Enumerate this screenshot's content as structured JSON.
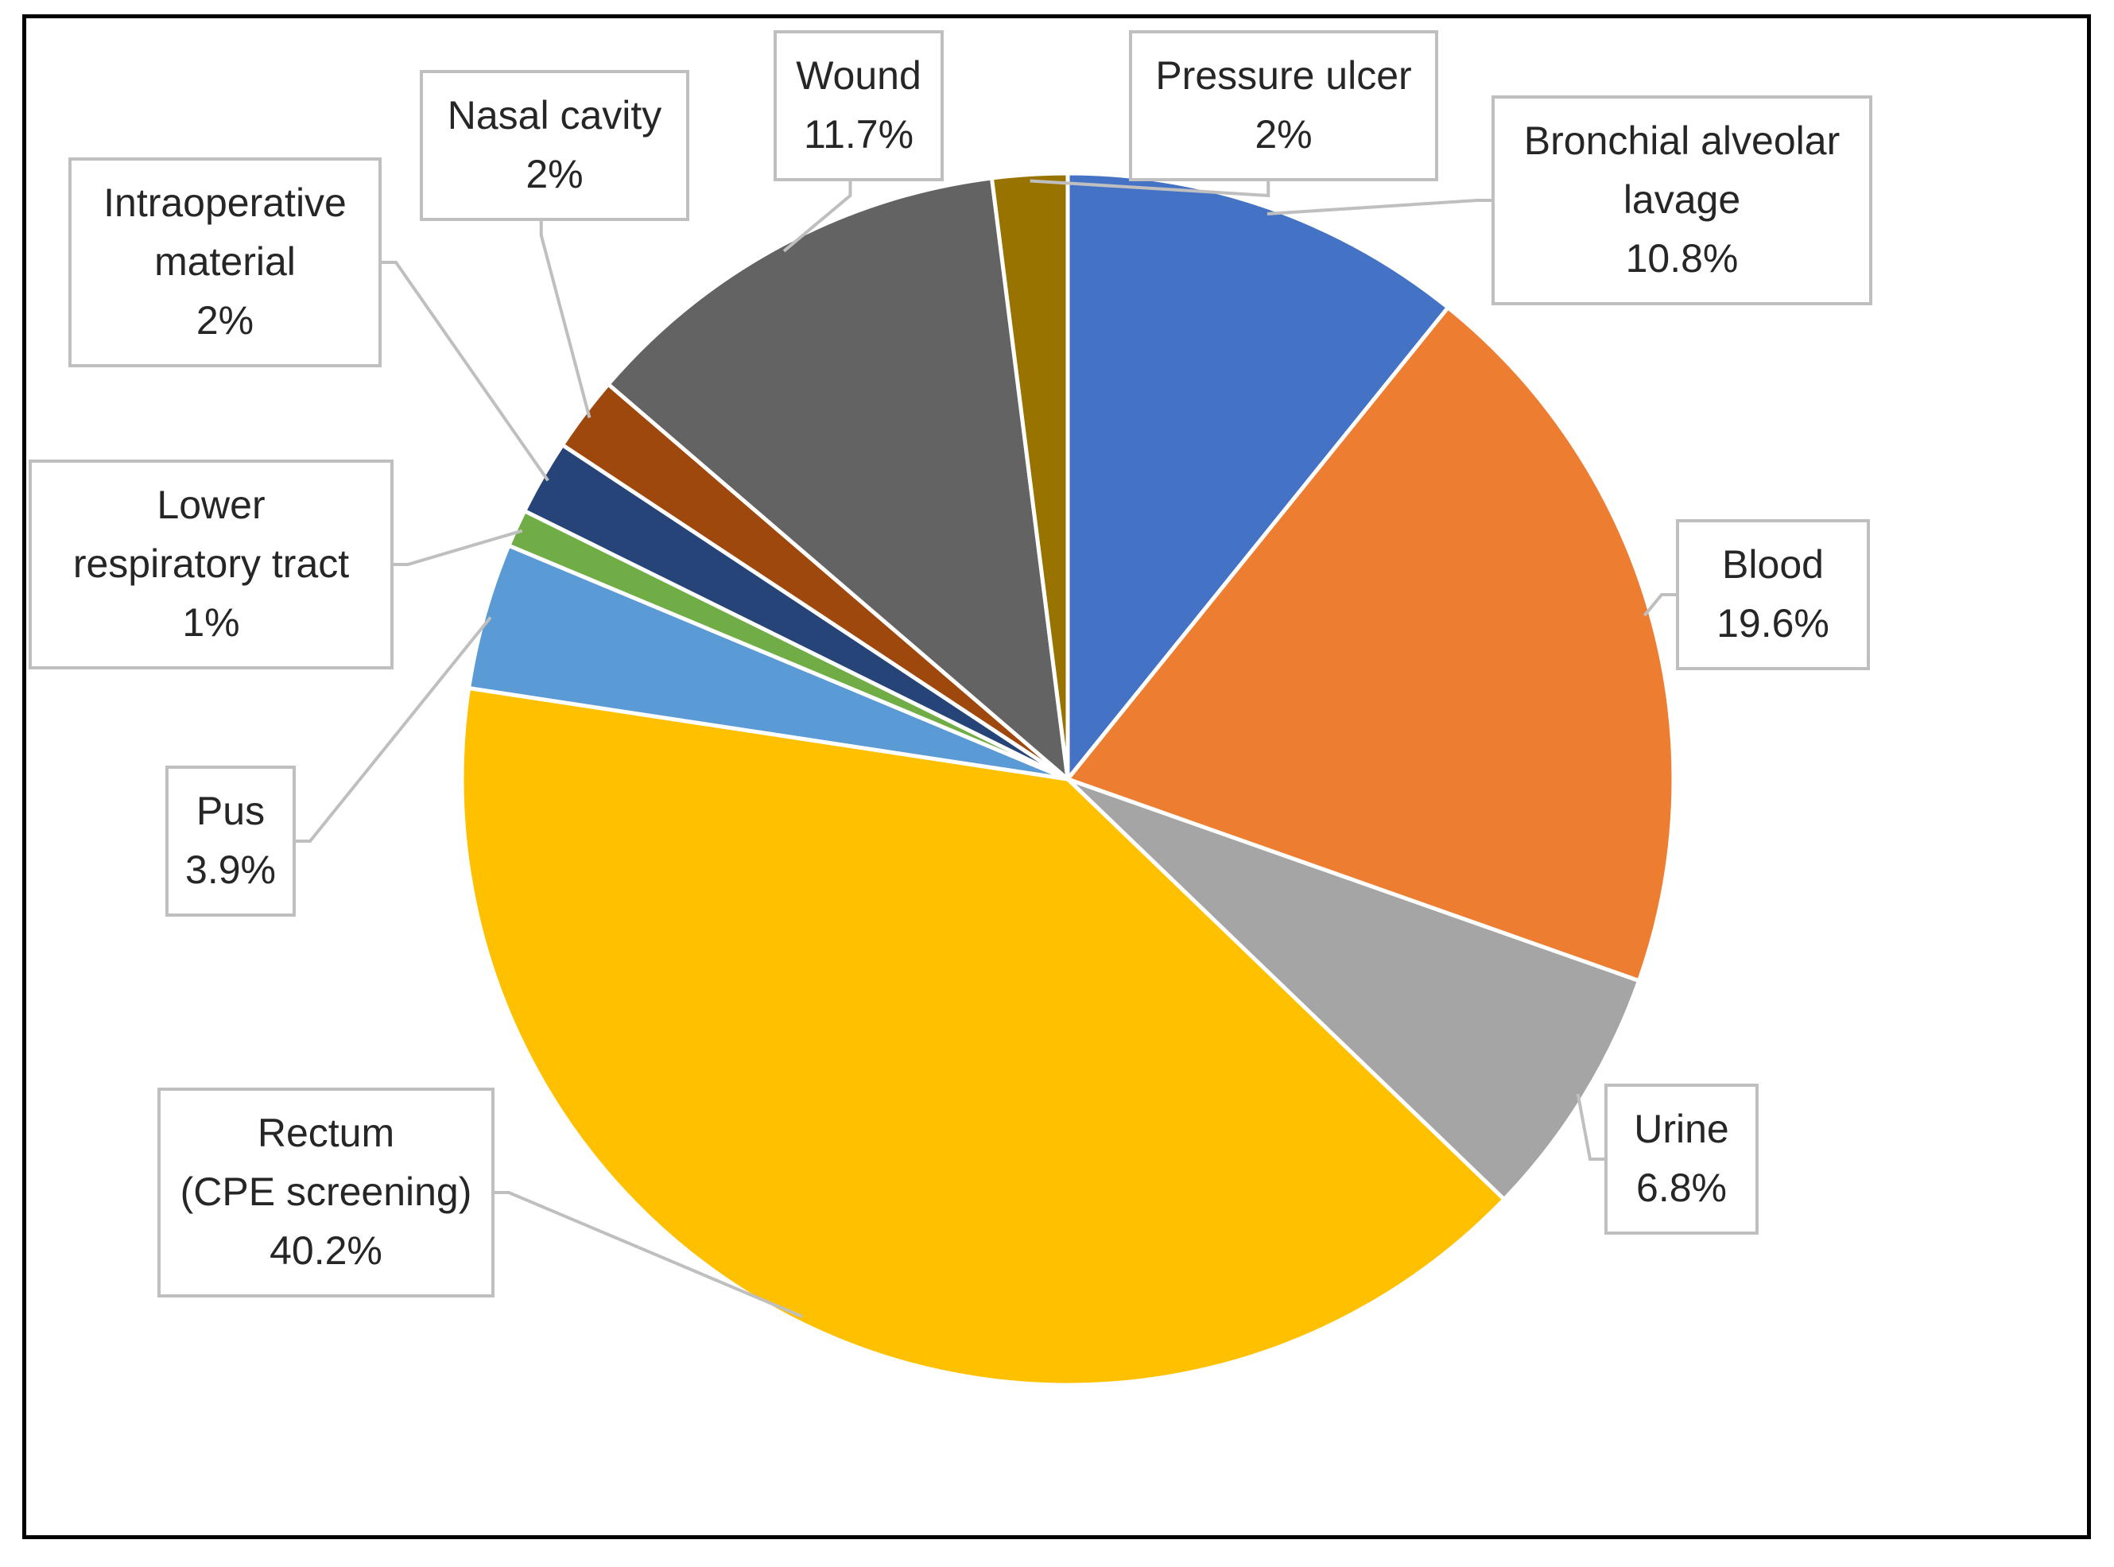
{
  "chart_data": {
    "type": "pie",
    "title": "",
    "start_angle_deg": 0,
    "direction": "clockwise",
    "slices": [
      {
        "name": "Bronchial alveolar lavage",
        "lines": [
          "Bronchial alveolar",
          "lavage",
          "10.8%"
        ],
        "value": 10.8,
        "color": "#4472C4"
      },
      {
        "name": "Blood",
        "lines": [
          "Blood",
          "19.6%"
        ],
        "value": 19.6,
        "color": "#ED7D31"
      },
      {
        "name": "Urine",
        "lines": [
          "Urine",
          "6.8%"
        ],
        "value": 6.8,
        "color": "#A5A5A5"
      },
      {
        "name": "Rectum (CPE screening)",
        "lines": [
          "Rectum",
          "(CPE screening)",
          "40.2%"
        ],
        "value": 40.2,
        "color": "#FFC000"
      },
      {
        "name": "Pus",
        "lines": [
          "Pus",
          "3.9%"
        ],
        "value": 3.9,
        "color": "#5B9BD5"
      },
      {
        "name": "Lower respiratory tract",
        "lines": [
          "Lower",
          "respiratory tract",
          "1%"
        ],
        "value": 1,
        "color": "#70AD47"
      },
      {
        "name": "Intraoperative material",
        "lines": [
          "Intraoperative",
          "material",
          "2%"
        ],
        "value": 2,
        "color": "#264478"
      },
      {
        "name": "Nasal cavity",
        "lines": [
          "Nasal cavity",
          "2%"
        ],
        "value": 2,
        "color": "#9E480E"
      },
      {
        "name": "Wound",
        "lines": [
          "Wound",
          "11.7%"
        ],
        "value": 11.7,
        "color": "#636363"
      },
      {
        "name": "Pressure ulcer",
        "lines": [
          "Pressure ulcer",
          "2%"
        ],
        "value": 2,
        "color": "#997300"
      }
    ]
  }
}
